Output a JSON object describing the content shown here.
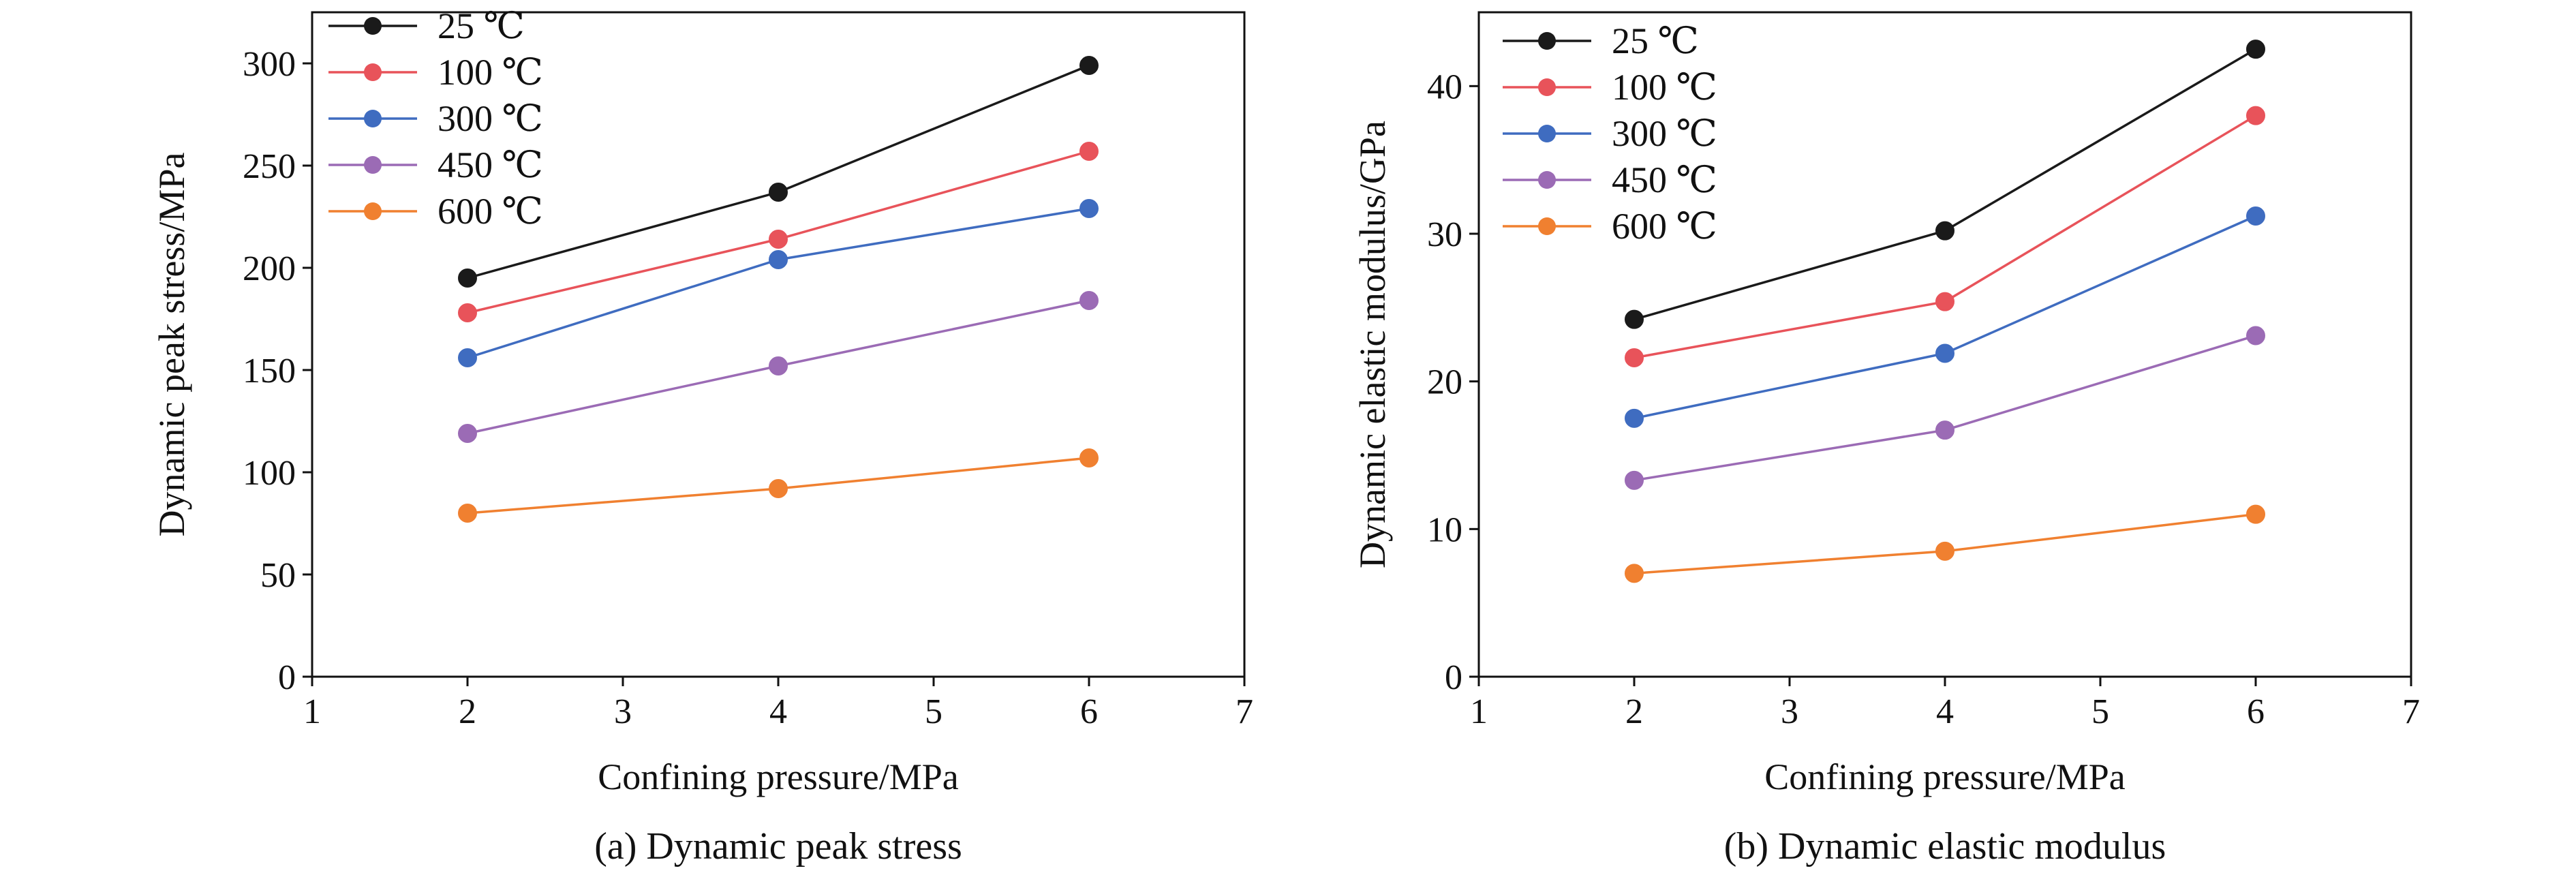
{
  "chart_data": [
    {
      "type": "line",
      "caption": "(a) Dynamic peak stress",
      "xlabel": "Confining pressure/MPa",
      "ylabel": "Dynamic peak stress/MPa",
      "xlim": [
        1,
        7
      ],
      "ylim": [
        0,
        325
      ],
      "x_ticks": [
        "1",
        "2",
        "3",
        "4",
        "5",
        "6",
        "7"
      ],
      "y_ticks": [
        "0",
        "50",
        "100",
        "150",
        "200",
        "250",
        "300"
      ],
      "x": [
        2,
        4,
        6
      ],
      "legend_position": "top-left",
      "series": [
        {
          "name": "25 ℃",
          "color": "#1a1a1a",
          "values": [
            195,
            237,
            299
          ]
        },
        {
          "name": "100 ℃",
          "color": "#e8535a",
          "values": [
            178,
            214,
            257
          ]
        },
        {
          "name": "300 ℃",
          "color": "#3f6cc0",
          "values": [
            156,
            204,
            229
          ]
        },
        {
          "name": "450 ℃",
          "color": "#9b6bb5",
          "values": [
            119,
            152,
            184
          ]
        },
        {
          "name": "600 ℃",
          "color": "#f08030",
          "values": [
            80,
            92,
            107
          ]
        }
      ]
    },
    {
      "type": "line",
      "caption": "(b) Dynamic elastic modulus",
      "xlabel": "Confining pressure/MPa",
      "ylabel": "Dynamic elastic modulus/GPa",
      "xlim": [
        1,
        7
      ],
      "ylim": [
        0,
        45
      ],
      "x_ticks": [
        "1",
        "2",
        "3",
        "4",
        "5",
        "6",
        "7"
      ],
      "y_ticks": [
        "0",
        "10",
        "20",
        "30",
        "40"
      ],
      "x": [
        2,
        4,
        6
      ],
      "legend_position": "top-left",
      "series": [
        {
          "name": "25 ℃",
          "color": "#1a1a1a",
          "values": [
            24.2,
            30.2,
            42.5
          ]
        },
        {
          "name": "100 ℃",
          "color": "#e8535a",
          "values": [
            21.6,
            25.4,
            38.0
          ]
        },
        {
          "name": "300 ℃",
          "color": "#3f6cc0",
          "values": [
            17.5,
            21.9,
            31.2
          ]
        },
        {
          "name": "450 ℃",
          "color": "#9b6bb5",
          "values": [
            13.3,
            16.7,
            23.1
          ]
        },
        {
          "name": "600 ℃",
          "color": "#f08030",
          "values": [
            7.0,
            8.5,
            11.0
          ]
        }
      ]
    }
  ]
}
